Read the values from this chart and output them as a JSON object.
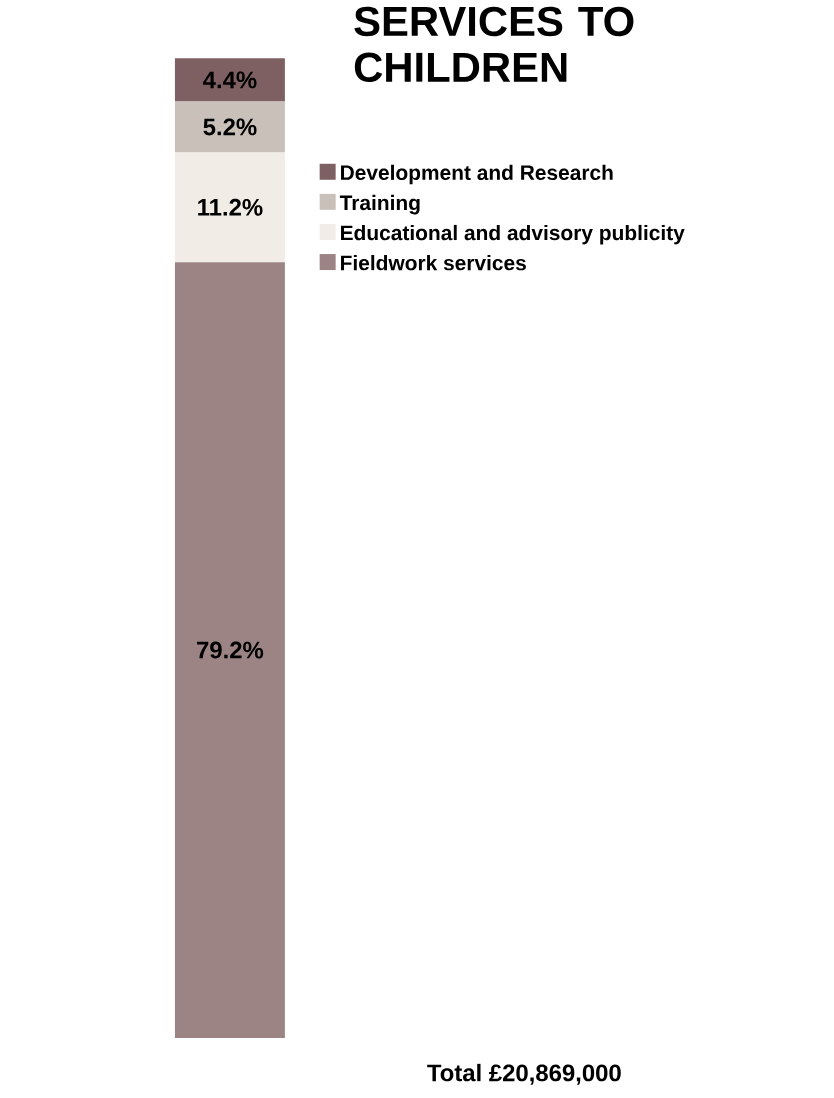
{
  "chart_data": {
    "type": "bar",
    "stacked": true,
    "title": "SERVICES TO CHILDREN",
    "categories": [
      null
    ],
    "series": [
      {
        "name": "Fieldwork services",
        "color": "#9c8484",
        "values": [
          79.2
        ],
        "value_labels": [
          "79.2%"
        ]
      },
      {
        "name": "Educational and advisory publicity",
        "color": "#f1ede6",
        "values": [
          11.2
        ],
        "value_labels": [
          "11.2%"
        ]
      },
      {
        "name": "Training",
        "color": "#c9c0ba",
        "values": [
          5.2
        ],
        "value_labels": [
          "5.2%"
        ]
      },
      {
        "name": "Development and Research",
        "color": "#7e6062",
        "values": [
          4.4
        ],
        "value_labels": [
          "4.4%"
        ]
      }
    ],
    "legend": "right",
    "annotations": [
      "Total £20,869,000"
    ]
  }
}
